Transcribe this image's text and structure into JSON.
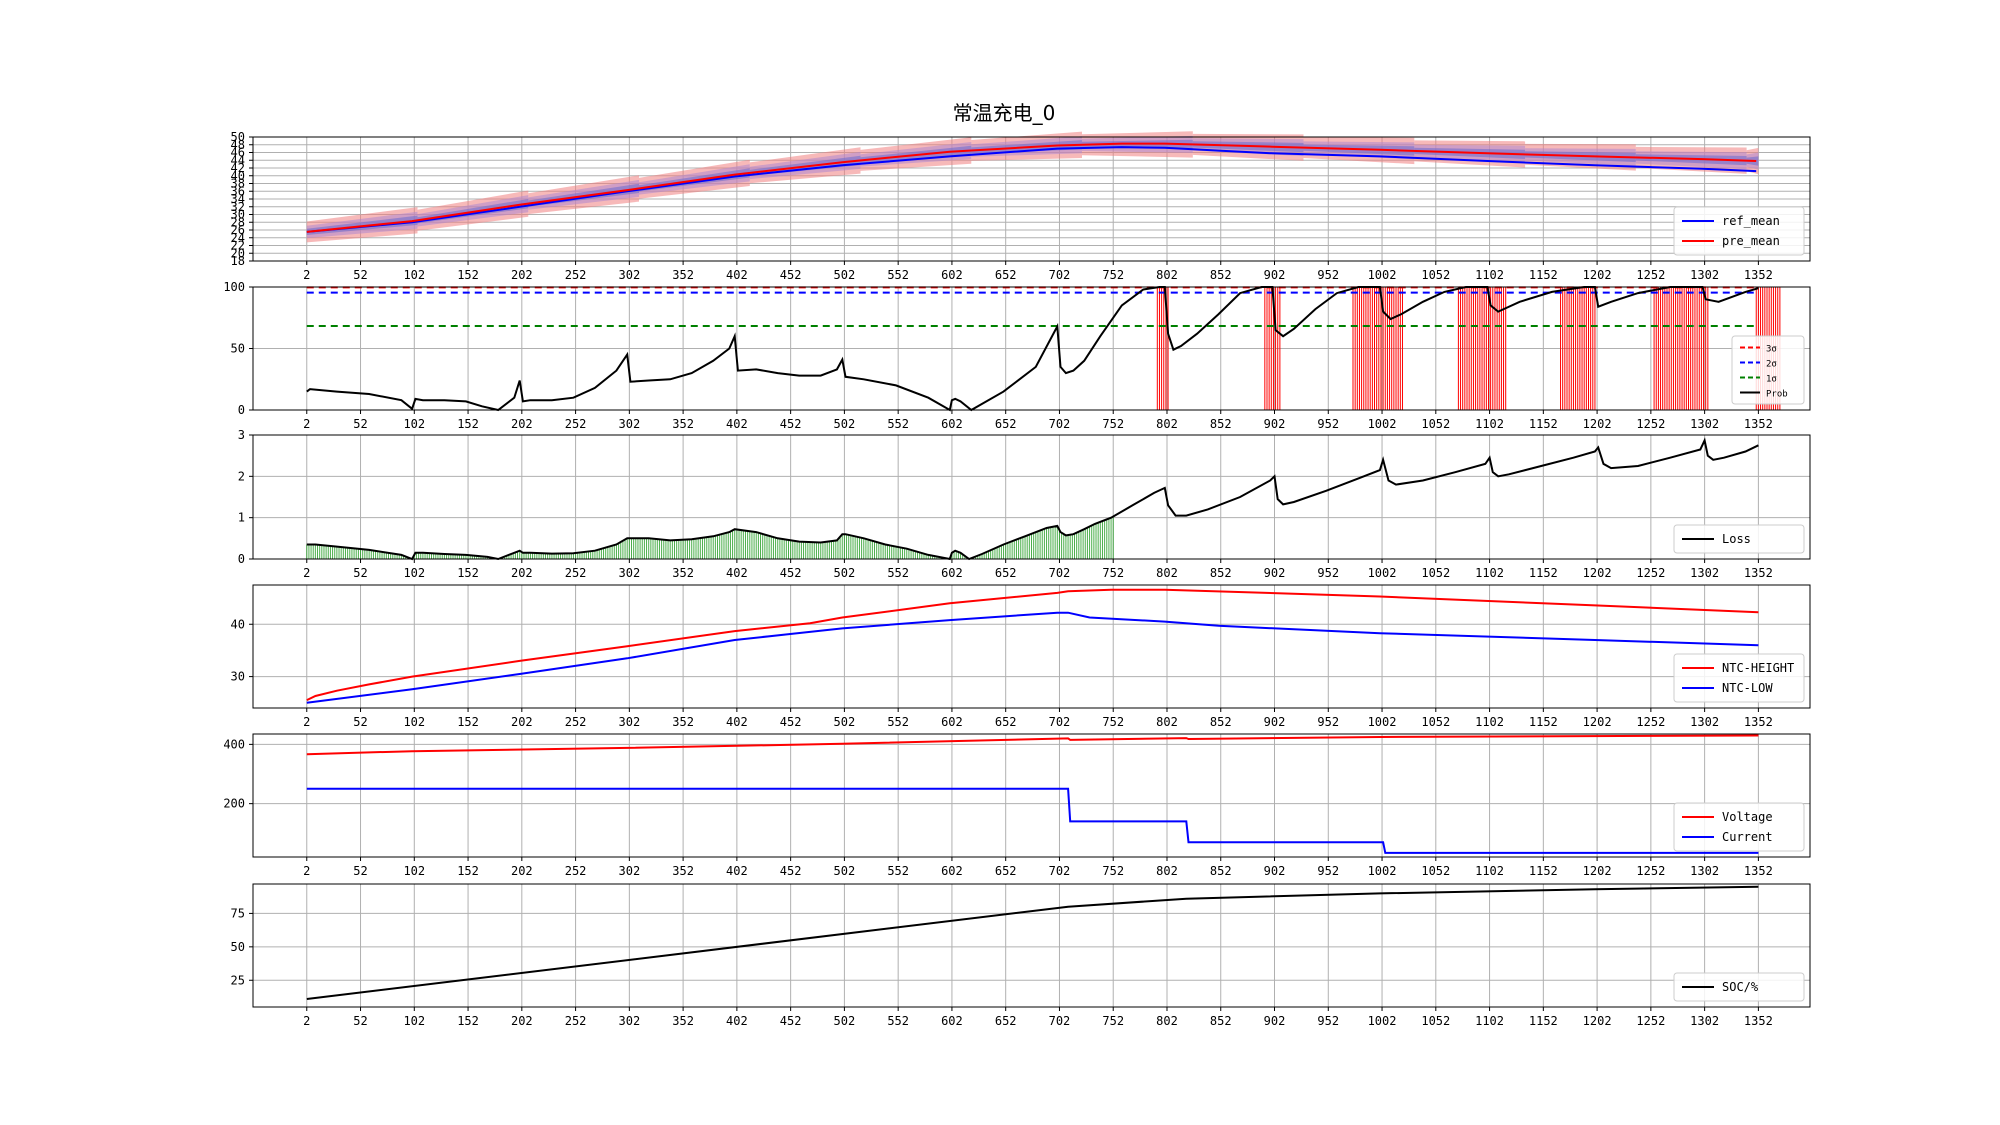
{
  "title": "常温充电_0",
  "chart_data": [
    {
      "type": "line",
      "x_ticks": [
        "2",
        "52",
        "102",
        "152",
        "202",
        "252",
        "302",
        "352",
        "402",
        "452",
        "502",
        "552",
        "602",
        "652",
        "702",
        "752",
        "802",
        "852",
        "902",
        "952",
        "1002",
        "1052",
        "1102",
        "1152",
        "1202",
        "1252",
        "1302",
        "1352"
      ],
      "y_ticks": [
        "18",
        "20",
        "22",
        "24",
        "26",
        "28",
        "30",
        "32",
        "34",
        "36",
        "38",
        "40",
        "42",
        "44",
        "46",
        "48",
        "50"
      ],
      "ylim": [
        18,
        50
      ],
      "grid": true,
      "legend_position": "lower-right",
      "series": [
        {
          "name": "ref_mean",
          "color": "#0000ff",
          "x": [
            2,
            100,
            200,
            300,
            400,
            500,
            600,
            700,
            760,
            800,
            850,
            900,
            1000,
            1100,
            1200,
            1300,
            1350
          ],
          "y": [
            25.5,
            28,
            32,
            36,
            39.8,
            42.7,
            45,
            47,
            47.4,
            47.2,
            46.5,
            45.8,
            45,
            43.8,
            42.7,
            41.8,
            41.2
          ]
        },
        {
          "name": "pre_mean",
          "color": "#ff0000",
          "x": [
            2,
            100,
            200,
            300,
            400,
            500,
            600,
            700,
            760,
            800,
            850,
            900,
            1000,
            1100,
            1200,
            1300,
            1350
          ],
          "y": [
            25.5,
            28.3,
            32.5,
            36.3,
            40.3,
            43.5,
            46.2,
            47.8,
            48.3,
            48.3,
            47.9,
            47.5,
            46.7,
            45.8,
            45,
            44.3,
            43.8
          ]
        }
      ],
      "bands": [
        {
          "name": "±3σ",
          "color": "#f08080",
          "sigma": [
            3.4,
            2.7
          ]
        },
        {
          "name": "±2σ",
          "color": "#b088d0",
          "sigma": [
            2.2,
            1.6
          ]
        },
        {
          "name": "±1σ",
          "color": "#6a6acd",
          "sigma": [
            1.2,
            0.8
          ]
        }
      ]
    },
    {
      "type": "line",
      "x_ticks": [
        "2",
        "52",
        "102",
        "152",
        "202",
        "252",
        "302",
        "352",
        "402",
        "452",
        "502",
        "552",
        "602",
        "652",
        "702",
        "752",
        "802",
        "852",
        "902",
        "952",
        "1002",
        "1052",
        "1102",
        "1152",
        "1202",
        "1252",
        "1302",
        "1352"
      ],
      "y_ticks": [
        "0",
        "50",
        "100"
      ],
      "ylim": [
        0,
        100
      ],
      "legend_position": "lower-right",
      "thresholds": [
        {
          "name": "3σ",
          "value": 99.7,
          "color": "#ff0000"
        },
        {
          "name": "2σ",
          "value": 95.4,
          "color": "#0000ff"
        },
        {
          "name": "1σ",
          "value": 68.3,
          "color": "#008000"
        }
      ],
      "series": [
        {
          "name": "Prob",
          "color": "#000000",
          "x": [
            2,
            5,
            30,
            60,
            90,
            100,
            103,
            110,
            130,
            150,
            165,
            180,
            195,
            200,
            203,
            210,
            230,
            250,
            270,
            290,
            300,
            303,
            320,
            340,
            360,
            380,
            395,
            400,
            403,
            420,
            440,
            460,
            480,
            495,
            500,
            503,
            520,
            550,
            580,
            600,
            602,
            605,
            610,
            620,
            650,
            680,
            700,
            703,
            708,
            715,
            725,
            740,
            760,
            780,
            795,
            800,
            803,
            808,
            815,
            830,
            850,
            870,
            890,
            900,
            903,
            910,
            920,
            940,
            960,
            980,
            995,
            1000,
            1003,
            1010,
            1020,
            1040,
            1060,
            1080,
            1095,
            1100,
            1103,
            1110,
            1130,
            1160,
            1190,
            1200,
            1203,
            1215,
            1240,
            1270,
            1295,
            1300,
            1303,
            1315,
            1340,
            1352
          ],
          "y": [
            15,
            17,
            15,
            13,
            8,
            1,
            9,
            8,
            8,
            7,
            3,
            0,
            10,
            24,
            7,
            8,
            8,
            10,
            18,
            32,
            45,
            23,
            24,
            25,
            30,
            40,
            50,
            60,
            32,
            33,
            30,
            28,
            28,
            33,
            41,
            27,
            25,
            20,
            10,
            0,
            8,
            9,
            7,
            0,
            15,
            35,
            68,
            35,
            30,
            32,
            40,
            60,
            85,
            98,
            100,
            100,
            62,
            49,
            52,
            62,
            78,
            95,
            100,
            100,
            65,
            60,
            66,
            82,
            95,
            100,
            100,
            100,
            80,
            74,
            78,
            88,
            96,
            100,
            100,
            100,
            85,
            80,
            88,
            96,
            100,
            100,
            84,
            88,
            95,
            100,
            100,
            100,
            90,
            88,
            96,
            99
          ]
        },
        {
          "name": "alarm_bars",
          "color": "#ff0000",
          "ranges": [
            [
              793,
              803
            ],
            [
              893,
              907
            ],
            [
              975,
              1022
            ],
            [
              1073,
              1118
            ],
            [
              1168,
              1200
            ],
            [
              1255,
              1305
            ],
            [
              1350,
              1373
            ]
          ]
        }
      ]
    },
    {
      "type": "line",
      "x_ticks": [
        "2",
        "52",
        "102",
        "152",
        "202",
        "252",
        "302",
        "352",
        "402",
        "452",
        "502",
        "552",
        "602",
        "652",
        "702",
        "752",
        "802",
        "852",
        "902",
        "952",
        "1002",
        "1052",
        "1102",
        "1152",
        "1202",
        "1252",
        "1302",
        "1352"
      ],
      "y_ticks": [
        "0",
        "1",
        "2",
        "3"
      ],
      "ylim": [
        0,
        3
      ],
      "legend_position": "lower-right",
      "series": [
        {
          "name": "Loss",
          "color": "#000000",
          "x": [
            2,
            10,
            30,
            60,
            90,
            100,
            103,
            110,
            130,
            150,
            170,
            180,
            195,
            200,
            203,
            210,
            230,
            250,
            270,
            290,
            300,
            320,
            340,
            360,
            380,
            395,
            400,
            420,
            440,
            460,
            480,
            495,
            500,
            503,
            520,
            540,
            560,
            580,
            600,
            602,
            605,
            610,
            618,
            630,
            650,
            670,
            690,
            700,
            703,
            708,
            715,
            725,
            735,
            750,
            770,
            790,
            800,
            803,
            810,
            820,
            840,
            870,
            898,
            902,
            905,
            910,
            920,
            950,
            980,
            1000,
            1003,
            1008,
            1015,
            1040,
            1070,
            1098,
            1102,
            1105,
            1110,
            1120,
            1150,
            1180,
            1200,
            1203,
            1208,
            1215,
            1240,
            1270,
            1298,
            1302,
            1305,
            1310,
            1320,
            1340,
            1352
          ],
          "y": [
            0.35,
            0.35,
            0.3,
            0.22,
            0.1,
            0,
            0.15,
            0.15,
            0.12,
            0.1,
            0.05,
            0,
            0.15,
            0.2,
            0.15,
            0.15,
            0.13,
            0.14,
            0.2,
            0.35,
            0.5,
            0.5,
            0.45,
            0.48,
            0.55,
            0.65,
            0.72,
            0.65,
            0.5,
            0.42,
            0.4,
            0.45,
            0.6,
            0.6,
            0.5,
            0.35,
            0.25,
            0.1,
            0,
            0.15,
            0.2,
            0.15,
            0,
            0.12,
            0.35,
            0.55,
            0.75,
            0.8,
            0.65,
            0.57,
            0.6,
            0.72,
            0.85,
            1,
            1.3,
            1.6,
            1.72,
            1.3,
            1.05,
            1.05,
            1.2,
            1.5,
            1.9,
            2,
            1.45,
            1.32,
            1.38,
            1.65,
            1.95,
            2.15,
            2.4,
            1.9,
            1.8,
            1.9,
            2.1,
            2.3,
            2.45,
            2.1,
            2.0,
            2.05,
            2.25,
            2.45,
            2.6,
            2.7,
            2.3,
            2.2,
            2.25,
            2.45,
            2.65,
            2.87,
            2.5,
            2.4,
            2.45,
            2.6,
            2.75
          ]
        },
        {
          "name": "loss_fill",
          "color": "#2ca02c",
          "x_end": 752
        }
      ]
    },
    {
      "type": "line",
      "x_ticks": [
        "2",
        "52",
        "102",
        "152",
        "202",
        "252",
        "302",
        "352",
        "402",
        "452",
        "502",
        "552",
        "602",
        "652",
        "702",
        "752",
        "802",
        "852",
        "902",
        "952",
        "1002",
        "1052",
        "1102",
        "1152",
        "1202",
        "1252",
        "1302",
        "1352"
      ],
      "y_ticks": [
        "30",
        "40"
      ],
      "ylim": [
        24,
        47.5
      ],
      "legend_position": "lower-right",
      "series": [
        {
          "name": "NTC-HEIGHT",
          "color": "#ff0000",
          "x": [
            2,
            10,
            30,
            60,
            100,
            200,
            300,
            400,
            470,
            500,
            600,
            700,
            710,
            750,
            800,
            1000,
            1200,
            1352
          ],
          "y": [
            25.5,
            26.3,
            27.3,
            28.5,
            30,
            33,
            35.8,
            38.7,
            40.2,
            41.3,
            44,
            46,
            46.3,
            46.6,
            46.6,
            45.3,
            43.6,
            42.3
          ]
        },
        {
          "name": "NTC-LOW",
          "color": "#0000ff",
          "x": [
            2,
            100,
            200,
            300,
            400,
            500,
            600,
            700,
            710,
            730,
            800,
            850,
            1000,
            1200,
            1352
          ],
          "y": [
            25,
            27.6,
            30.5,
            33.5,
            37,
            39.2,
            40.8,
            42.2,
            42.2,
            41.3,
            40.5,
            39.7,
            38.3,
            37,
            36
          ]
        }
      ]
    },
    {
      "type": "line",
      "x_ticks": [
        "2",
        "52",
        "102",
        "152",
        "202",
        "252",
        "302",
        "352",
        "402",
        "452",
        "502",
        "552",
        "602",
        "652",
        "702",
        "752",
        "802",
        "852",
        "902",
        "952",
        "1002",
        "1052",
        "1102",
        "1152",
        "1202",
        "1252",
        "1302",
        "1352"
      ],
      "y_ticks": [
        "200",
        "400"
      ],
      "ylim": [
        20,
        435
      ],
      "legend_position": "lower-right",
      "series": [
        {
          "name": "Voltage",
          "color": "#ff0000",
          "x": [
            2,
            100,
            300,
            500,
            710,
            712,
            820,
            822,
            1000,
            1352
          ],
          "y": [
            367,
            377,
            388,
            402,
            420,
            415,
            421,
            418,
            425,
            430
          ]
        },
        {
          "name": "Current",
          "color": "#0000ff",
          "x": [
            2,
            710,
            712,
            820,
            822,
            1003,
            1005,
            1352
          ],
          "y": [
            250,
            250,
            140,
            140,
            70,
            70,
            34,
            34
          ]
        }
      ]
    },
    {
      "type": "line",
      "x_ticks": [
        "2",
        "52",
        "102",
        "152",
        "202",
        "252",
        "302",
        "352",
        "402",
        "452",
        "502",
        "552",
        "602",
        "652",
        "702",
        "752",
        "802",
        "852",
        "902",
        "952",
        "1002",
        "1052",
        "1102",
        "1152",
        "1202",
        "1252",
        "1302",
        "1352"
      ],
      "y_ticks": [
        "25",
        "50",
        "75"
      ],
      "ylim": [
        5,
        97
      ],
      "legend_position": "lower-right",
      "series": [
        {
          "name": "SOC/%",
          "color": "#000000",
          "x": [
            2,
            710,
            820,
            1000,
            1200,
            1352
          ],
          "y": [
            11,
            80,
            86,
            90,
            93,
            95
          ]
        }
      ]
    }
  ]
}
